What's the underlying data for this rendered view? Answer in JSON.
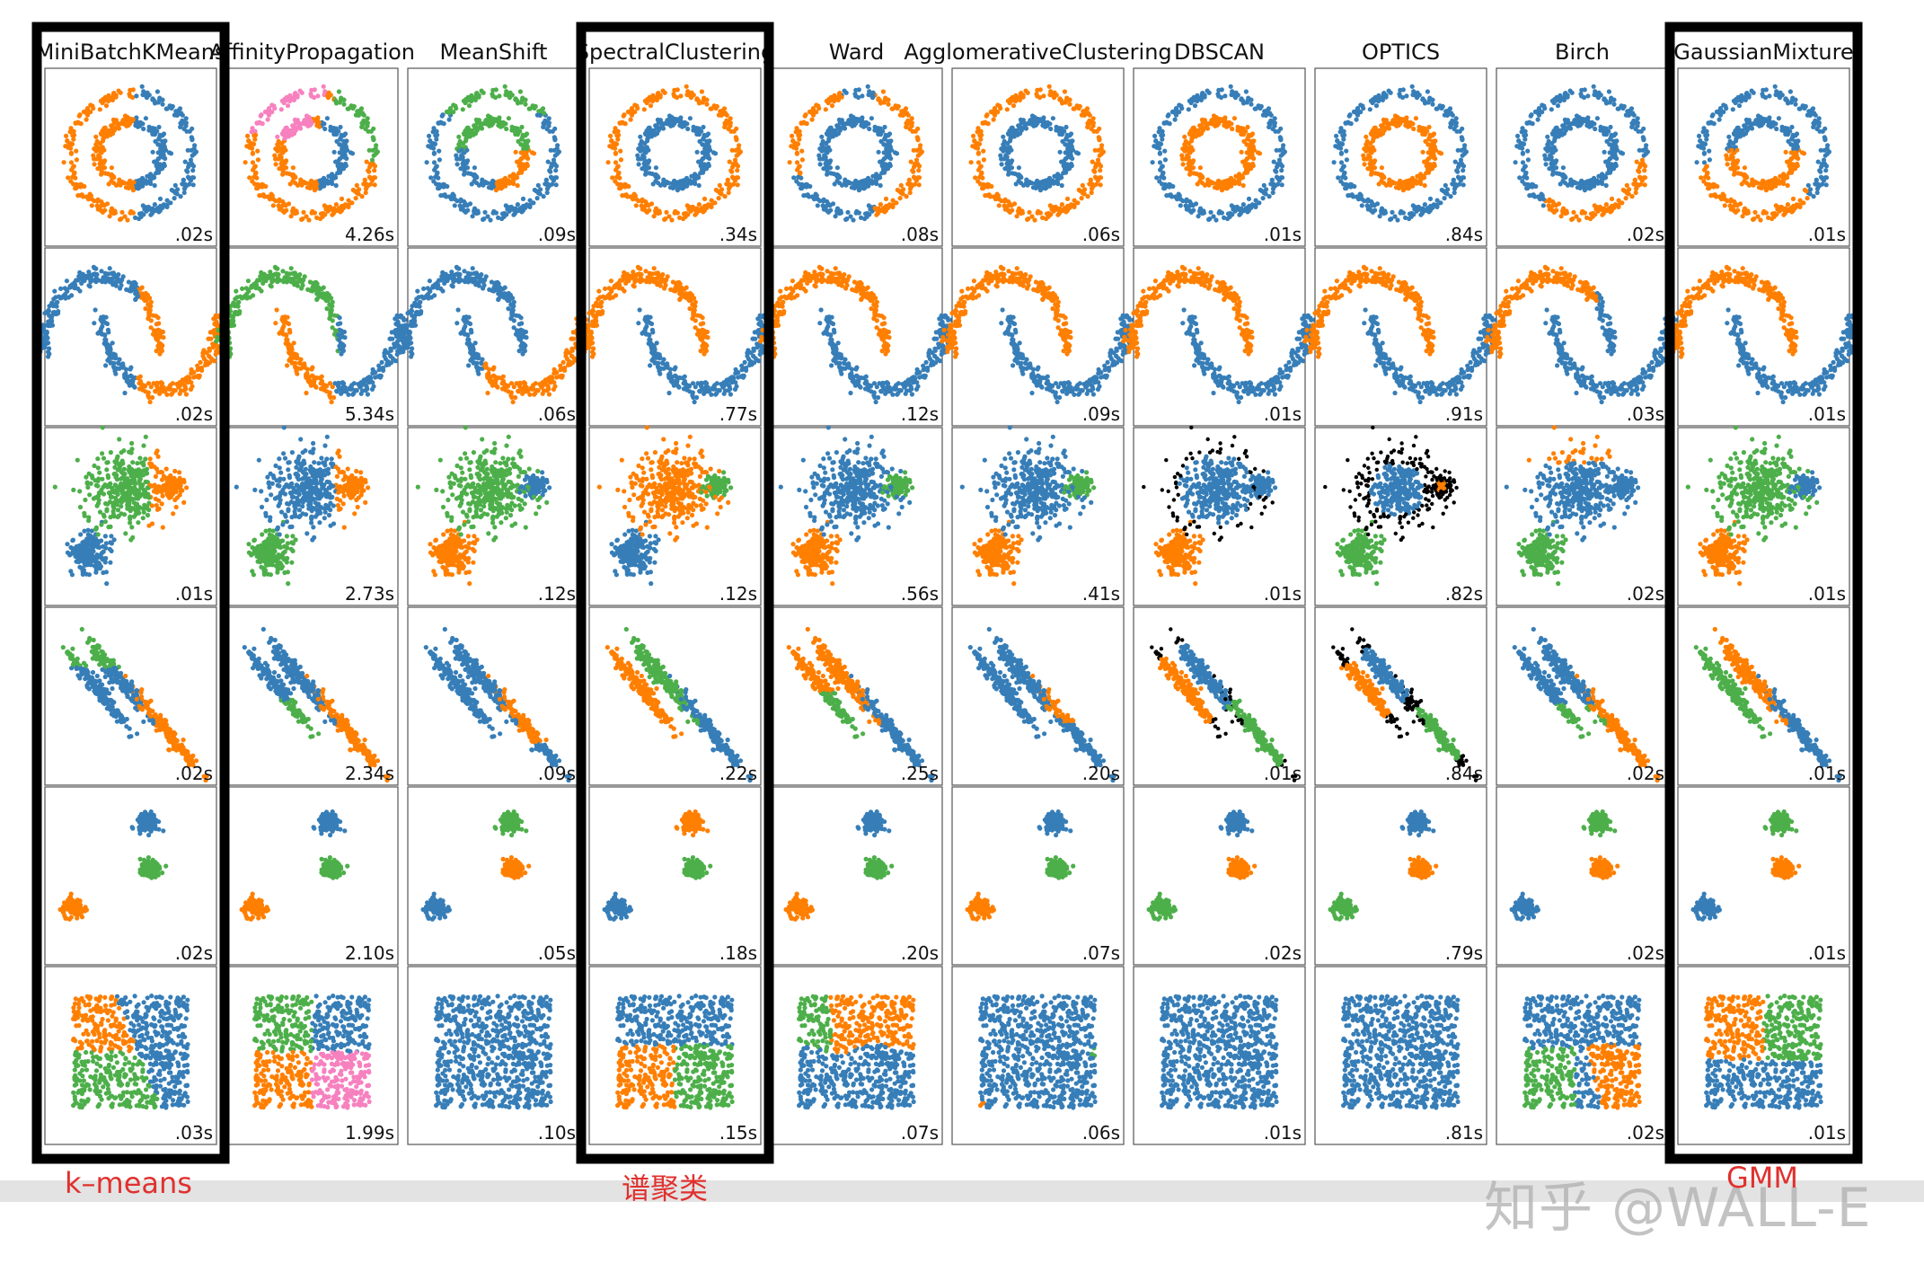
{
  "chart_data": {
    "type": "scatter",
    "title": "",
    "methods": [
      "MiniBatchKMeans",
      "AffinityPropagation",
      "MeanShift",
      "SpectralClustering",
      "Ward",
      "AgglomerativeClustering",
      "DBSCAN",
      "OPTICS",
      "Birch",
      "GaussianMixture"
    ],
    "datasets": [
      "noisy_circles",
      "noisy_moons",
      "varied",
      "aniso",
      "blobs",
      "no_structure"
    ],
    "times": [
      [
        ".02s",
        "4.26s",
        ".09s",
        ".34s",
        ".08s",
        ".06s",
        ".01s",
        ".84s",
        ".02s",
        ".01s"
      ],
      [
        ".02s",
        "5.34s",
        ".06s",
        ".77s",
        ".12s",
        ".09s",
        ".01s",
        ".91s",
        ".03s",
        ".01s"
      ],
      [
        ".01s",
        "2.73s",
        ".12s",
        ".12s",
        ".56s",
        ".41s",
        ".01s",
        ".82s",
        ".02s",
        ".01s"
      ],
      [
        ".02s",
        "2.34s",
        ".09s",
        ".22s",
        ".25s",
        ".20s",
        ".01s",
        ".84s",
        ".02s",
        ".01s"
      ],
      [
        ".02s",
        "2.10s",
        ".05s",
        ".18s",
        ".20s",
        ".07s",
        ".02s",
        ".79s",
        ".02s",
        ".01s"
      ],
      [
        ".03s",
        "1.99s",
        ".10s",
        ".15s",
        ".07s",
        ".06s",
        ".01s",
        ".81s",
        ".02s",
        ".01s"
      ]
    ],
    "cluster_colors": [
      "#377eb8",
      "#ff7f00",
      "#4daf4a",
      "#f781bf",
      "#000000"
    ],
    "grid": false,
    "highlighted_methods": [
      "MiniBatchKMeans",
      "SpectralClustering",
      "GaussianMixture"
    ]
  },
  "annotations": {
    "kmeans": "k–means",
    "spectral": "谱聚类",
    "gmm": "GMM"
  },
  "watermark": "知乎 @WALL-E",
  "colors": {
    "highlight_frame": "#000000",
    "annotation_text": "#e0312f",
    "band": "#e3e3e3"
  }
}
